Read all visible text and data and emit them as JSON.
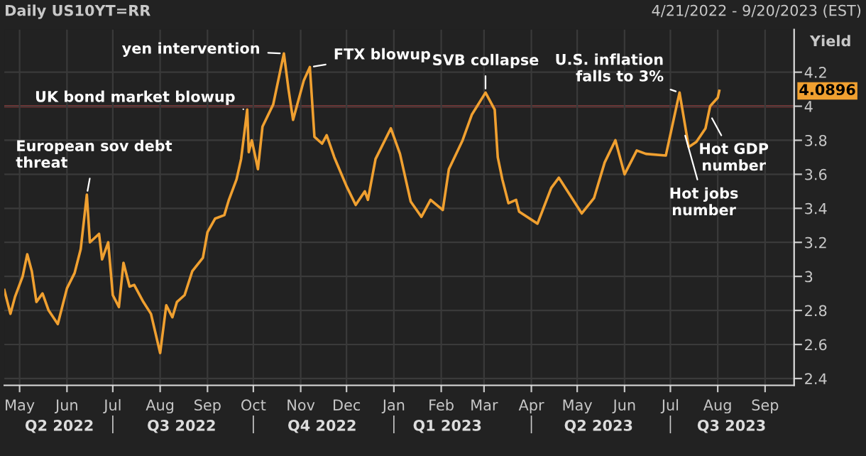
{
  "chart_data": {
    "type": "line",
    "title": "Daily US10YT=RR",
    "subtitle": "4/21/2022 - 9/20/2023 (EST)",
    "ylabel": "Yield",
    "x": [
      "2022-04-21",
      "2022-04-25",
      "2022-04-28",
      "2022-05-03",
      "2022-05-06",
      "2022-05-09",
      "2022-05-12",
      "2022-05-16",
      "2022-05-20",
      "2022-05-26",
      "2022-06-01",
      "2022-06-06",
      "2022-06-10",
      "2022-06-14",
      "2022-06-16",
      "2022-06-22",
      "2022-06-24",
      "2022-06-28",
      "2022-07-01",
      "2022-07-05",
      "2022-07-08",
      "2022-07-12",
      "2022-07-15",
      "2022-07-21",
      "2022-07-26",
      "2022-08-01",
      "2022-08-05",
      "2022-08-09",
      "2022-08-12",
      "2022-08-17",
      "2022-08-22",
      "2022-08-29",
      "2022-09-01",
      "2022-09-06",
      "2022-09-12",
      "2022-09-15",
      "2022-09-20",
      "2022-09-23",
      "2022-09-27",
      "2022-09-28",
      "2022-09-30",
      "2022-10-04",
      "2022-10-07",
      "2022-10-14",
      "2022-10-21",
      "2022-10-24",
      "2022-10-27",
      "2022-11-03",
      "2022-11-07",
      "2022-11-10",
      "2022-11-15",
      "2022-11-18",
      "2022-11-23",
      "2022-12-01",
      "2022-12-07",
      "2022-12-13",
      "2022-12-15",
      "2022-12-20",
      "2022-12-30",
      "2023-01-05",
      "2023-01-12",
      "2023-01-19",
      "2023-01-25",
      "2023-02-02",
      "2023-02-06",
      "2023-02-15",
      "2023-02-21",
      "2023-03-02",
      "2023-03-08",
      "2023-03-10",
      "2023-03-13",
      "2023-03-17",
      "2023-03-22",
      "2023-03-24",
      "2023-04-05",
      "2023-04-14",
      "2023-04-19",
      "2023-05-04",
      "2023-05-12",
      "2023-05-19",
      "2023-05-26",
      "2023-06-01",
      "2023-06-09",
      "2023-06-15",
      "2023-06-28",
      "2023-07-06",
      "2023-07-07",
      "2023-07-13",
      "2023-07-18",
      "2023-07-24",
      "2023-07-27",
      "2023-08-01",
      "2023-08-02"
    ],
    "series": [
      {
        "color": "#f0a030",
        "values": [
          2.92,
          2.78,
          2.88,
          3.0,
          3.13,
          3.03,
          2.85,
          2.9,
          2.8,
          2.72,
          2.93,
          3.02,
          3.16,
          3.48,
          3.2,
          3.25,
          3.1,
          3.2,
          2.89,
          2.82,
          3.08,
          2.94,
          2.95,
          2.85,
          2.78,
          2.55,
          2.83,
          2.76,
          2.85,
          2.89,
          3.03,
          3.11,
          3.26,
          3.34,
          3.36,
          3.45,
          3.57,
          3.69,
          3.98,
          3.73,
          3.8,
          3.63,
          3.88,
          4.01,
          4.31,
          4.1,
          3.92,
          4.15,
          4.23,
          3.82,
          3.78,
          3.83,
          3.7,
          3.53,
          3.42,
          3.5,
          3.45,
          3.69,
          3.87,
          3.72,
          3.44,
          3.35,
          3.45,
          3.39,
          3.63,
          3.8,
          3.95,
          4.08,
          3.98,
          3.7,
          3.57,
          3.43,
          3.45,
          3.38,
          3.31,
          3.52,
          3.58,
          3.37,
          3.46,
          3.67,
          3.8,
          3.6,
          3.74,
          3.72,
          3.71,
          4.04,
          4.08,
          3.76,
          3.79,
          3.87,
          4.0,
          4.05,
          4.09
        ]
      }
    ],
    "xlim": [
      "2022-04-21",
      "2023-09-20"
    ],
    "xticks": [
      {
        "value": "2022-05-01",
        "label": "May"
      },
      {
        "value": "2022-06-01",
        "label": "Jun"
      },
      {
        "value": "2022-07-01",
        "label": "Jul"
      },
      {
        "value": "2022-08-01",
        "label": "Aug"
      },
      {
        "value": "2022-09-01",
        "label": "Sep"
      },
      {
        "value": "2022-10-01",
        "label": "Oct"
      },
      {
        "value": "2022-11-01",
        "label": "Nov"
      },
      {
        "value": "2022-12-01",
        "label": "Dec"
      },
      {
        "value": "2023-01-01",
        "label": "Jan"
      },
      {
        "value": "2023-02-01",
        "label": "Feb"
      },
      {
        "value": "2023-03-01",
        "label": "Mar"
      },
      {
        "value": "2023-04-01",
        "label": "Apr"
      },
      {
        "value": "2023-05-01",
        "label": "May"
      },
      {
        "value": "2023-06-01",
        "label": "Jun"
      },
      {
        "value": "2023-07-01",
        "label": "Jul"
      },
      {
        "value": "2023-08-01",
        "label": "Aug"
      },
      {
        "value": "2023-09-01",
        "label": "Sep"
      }
    ],
    "x2lim": [
      "2022-04-21",
      "2023-09-20"
    ],
    "x2ticks": [
      {
        "value": "2022-05-27",
        "label": "Q2 2022"
      },
      {
        "value": "2022-07-01",
        "label": null
      },
      {
        "value": "2022-08-15",
        "label": "Q3 2022"
      },
      {
        "value": "2022-10-01",
        "label": null
      },
      {
        "value": "2022-11-15",
        "label": "Q4 2022"
      },
      {
        "value": "2023-01-01",
        "label": null
      },
      {
        "value": "2023-02-05",
        "label": "Q1 2023"
      },
      {
        "value": "2023-04-01",
        "label": null
      },
      {
        "value": "2023-05-15",
        "label": "Q2 2023"
      },
      {
        "value": "2023-07-01",
        "label": null
      },
      {
        "value": "2023-08-10",
        "label": "Q3 2023"
      }
    ],
    "ylim": [
      2.36,
      4.45
    ],
    "yticks": [
      2.4,
      2.6,
      2.8,
      3,
      3.2,
      3.4,
      3.6,
      3.8,
      4,
      4.2
    ],
    "tick_labels": "y-right",
    "grid": true,
    "legend": false,
    "ref_lines": [
      {
        "axis": "y",
        "value": 4,
        "color": "#c03030"
      }
    ],
    "annotations": [
      {
        "text": "European sov debt\nthreat",
        "x": "2022-06-14",
        "y": 3.48
      },
      {
        "text": "UK bond market blowup",
        "x": "2022-09-27",
        "y": 3.98
      },
      {
        "text": "yen intervention",
        "x": "2022-10-21",
        "y": 4.31
      },
      {
        "text": "FTX blowup",
        "x": "2022-11-07",
        "y": 4.23
      },
      {
        "text": "SVB collapse",
        "x": "2023-03-02",
        "y": 4.08
      },
      {
        "text": "U.S. inflation\nfalls to 3%",
        "x": "2023-07-07",
        "y": 4.08
      },
      {
        "text": "Hot jobs\nnumber",
        "x": "2023-07-10",
        "y": 3.85
      },
      {
        "text": "Hot GDP\nnumber",
        "x": "2023-07-27",
        "y": 3.95
      },
      "4.0896"
    ]
  }
}
